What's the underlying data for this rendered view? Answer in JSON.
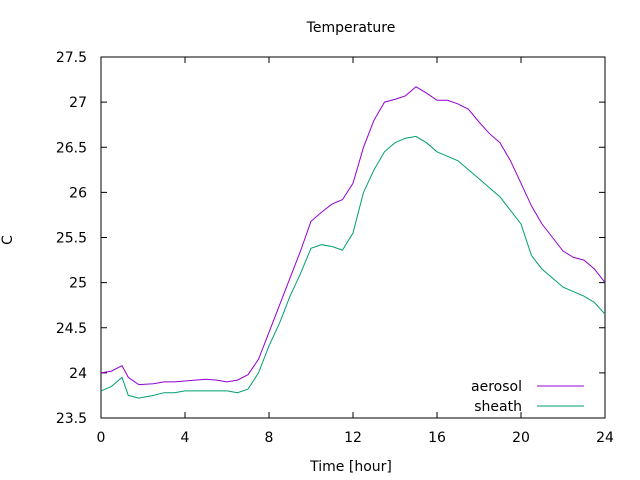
{
  "chart_data": {
    "type": "line",
    "title": "Temperature",
    "xlabel": "Time [hour]",
    "ylabel": "C",
    "xlim": [
      0,
      24
    ],
    "ylim": [
      23.5,
      27.5
    ],
    "xticks": [
      0,
      4,
      8,
      12,
      16,
      20,
      24
    ],
    "yticks": [
      23.5,
      24,
      24.5,
      25,
      25.5,
      26,
      26.5,
      27,
      27.5
    ],
    "grid": false,
    "legend_position": "bottom-right",
    "series": [
      {
        "name": "aerosol",
        "color": "#9400d3",
        "x": [
          0,
          0.5,
          1.0,
          1.3,
          1.8,
          2.5,
          3.0,
          3.5,
          4.0,
          4.5,
          5.0,
          5.5,
          6.0,
          6.5,
          7.0,
          7.5,
          8.0,
          8.5,
          9.0,
          9.5,
          10.0,
          10.5,
          11.0,
          11.5,
          12.0,
          12.5,
          13.0,
          13.5,
          14.0,
          14.5,
          15.0,
          15.5,
          16.0,
          16.5,
          17.0,
          17.5,
          18.0,
          18.5,
          19.0,
          19.5,
          20.0,
          20.5,
          21.0,
          21.5,
          22.0,
          22.5,
          23.0,
          23.5,
          24.0
        ],
        "y": [
          24.0,
          24.02,
          24.08,
          23.95,
          23.87,
          23.88,
          23.9,
          23.9,
          23.91,
          23.92,
          23.93,
          23.92,
          23.9,
          23.92,
          23.98,
          24.15,
          24.45,
          24.75,
          25.05,
          25.35,
          25.68,
          25.78,
          25.87,
          25.92,
          26.1,
          26.5,
          26.8,
          27.0,
          27.03,
          27.07,
          27.17,
          27.1,
          27.02,
          27.02,
          26.98,
          26.92,
          26.78,
          26.65,
          26.55,
          26.35,
          26.1,
          25.85,
          25.65,
          25.5,
          25.35,
          25.28,
          25.25,
          25.15,
          25.0
        ]
      },
      {
        "name": "sheath",
        "color": "#009e73",
        "x": [
          0,
          0.5,
          1.0,
          1.3,
          1.8,
          2.5,
          3.0,
          3.5,
          4.0,
          4.5,
          5.0,
          5.5,
          6.0,
          6.5,
          7.0,
          7.5,
          8.0,
          8.5,
          9.0,
          9.5,
          10.0,
          10.5,
          11.0,
          11.5,
          12.0,
          12.5,
          13.0,
          13.5,
          14.0,
          14.5,
          15.0,
          15.5,
          16.0,
          16.5,
          17.0,
          17.5,
          18.0,
          18.5,
          19.0,
          19.5,
          20.0,
          20.5,
          21.0,
          21.5,
          22.0,
          22.5,
          23.0,
          23.5,
          24.0
        ],
        "y": [
          23.8,
          23.85,
          23.95,
          23.75,
          23.72,
          23.75,
          23.78,
          23.78,
          23.8,
          23.8,
          23.8,
          23.8,
          23.8,
          23.78,
          23.82,
          24.0,
          24.3,
          24.55,
          24.85,
          25.1,
          25.38,
          25.42,
          25.4,
          25.36,
          25.55,
          26.0,
          26.25,
          26.45,
          26.55,
          26.6,
          26.62,
          26.55,
          26.45,
          26.4,
          26.35,
          26.25,
          26.15,
          26.05,
          25.95,
          25.8,
          25.65,
          25.3,
          25.15,
          25.05,
          24.95,
          24.9,
          24.85,
          24.78,
          24.65
        ]
      }
    ]
  }
}
